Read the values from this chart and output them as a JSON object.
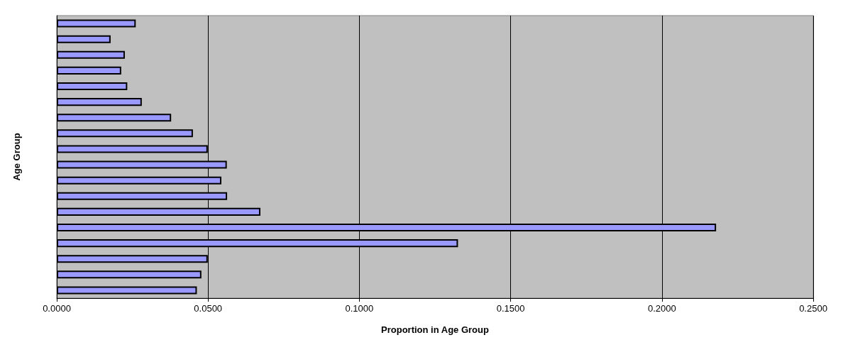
{
  "chart_data": {
    "type": "bar",
    "orientation": "horizontal",
    "xlabel": "Proportion in Age Group",
    "ylabel": "Age Group",
    "categories": [
      null,
      null,
      null,
      null,
      null,
      null,
      null,
      null,
      null,
      null,
      null,
      null,
      null,
      null,
      null,
      null,
      null,
      null
    ],
    "values": [
      0.0261,
      0.0178,
      0.0225,
      0.0213,
      0.0233,
      0.0281,
      0.0378,
      0.045,
      0.0499,
      0.0562,
      0.0544,
      0.0563,
      0.0673,
      0.2179,
      0.1326,
      0.0499,
      0.0478,
      0.0463
    ],
    "color": "#9999ff",
    "xlim": [
      0,
      0.25
    ],
    "xticks": [
      {
        "value": 0,
        "label": "0.0000"
      },
      {
        "value": 0.05,
        "label": "0.0500"
      },
      {
        "value": 0.1,
        "label": "0.1000"
      },
      {
        "value": 0.15,
        "label": "0.1500"
      },
      {
        "value": 0.2,
        "label": "0.2000"
      },
      {
        "value": 0.25,
        "label": "0.2500"
      }
    ],
    "grid": "x"
  }
}
